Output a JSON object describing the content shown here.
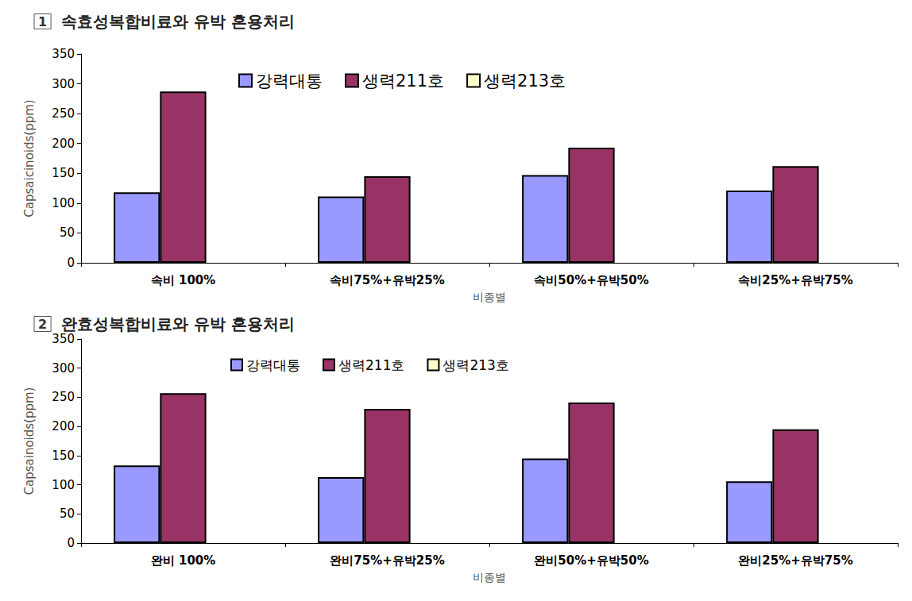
{
  "chart_data": [
    {
      "type": "bar",
      "title": "1 속효성복합비료와 유박 혼용처리",
      "x_label": "비종별",
      "y_label": "Capsaicinoids(ppm)",
      "categories": [
        "속비 100%",
        "속비75%+유박25%",
        "속비50%+유박50%",
        "속비25%+유박75%"
      ],
      "series": [
        {
          "name": "강력대통",
          "color": "#9999ff",
          "values": [
            118,
            111,
            147,
            121
          ]
        },
        {
          "name": "생력211호",
          "color": "#993366",
          "values": [
            287,
            145,
            193,
            162
          ]
        },
        {
          "name": "생력213호",
          "color": "#ffffcc",
          "values": [
            null,
            null,
            null,
            null
          ]
        }
      ],
      "ylim": [
        0,
        350
      ],
      "yticks": [
        0,
        50,
        100,
        150,
        200,
        250,
        300,
        350
      ],
      "grid": false,
      "legend": "top"
    },
    {
      "type": "bar",
      "title": "2 완효성복합비료와 유박 혼용처리",
      "x_label": "비종별",
      "y_label": "Capsainoids(ppm)",
      "categories": [
        "완비 100%",
        "완비75%+유박25%",
        "완비50%+유박50%",
        "완비25%+유박75%"
      ],
      "series": [
        {
          "name": "강력대통",
          "color": "#9999ff",
          "values": [
            133,
            113,
            145,
            106
          ]
        },
        {
          "name": "생력211호",
          "color": "#993366",
          "values": [
            257,
            230,
            241,
            195
          ]
        },
        {
          "name": "생력213호",
          "color": "#ffffcc",
          "values": [
            null,
            null,
            null,
            null
          ]
        }
      ],
      "ylim": [
        0,
        350
      ],
      "yticks": [
        0,
        50,
        100,
        150,
        200,
        250,
        300,
        350
      ],
      "grid": false,
      "legend": "top"
    }
  ]
}
